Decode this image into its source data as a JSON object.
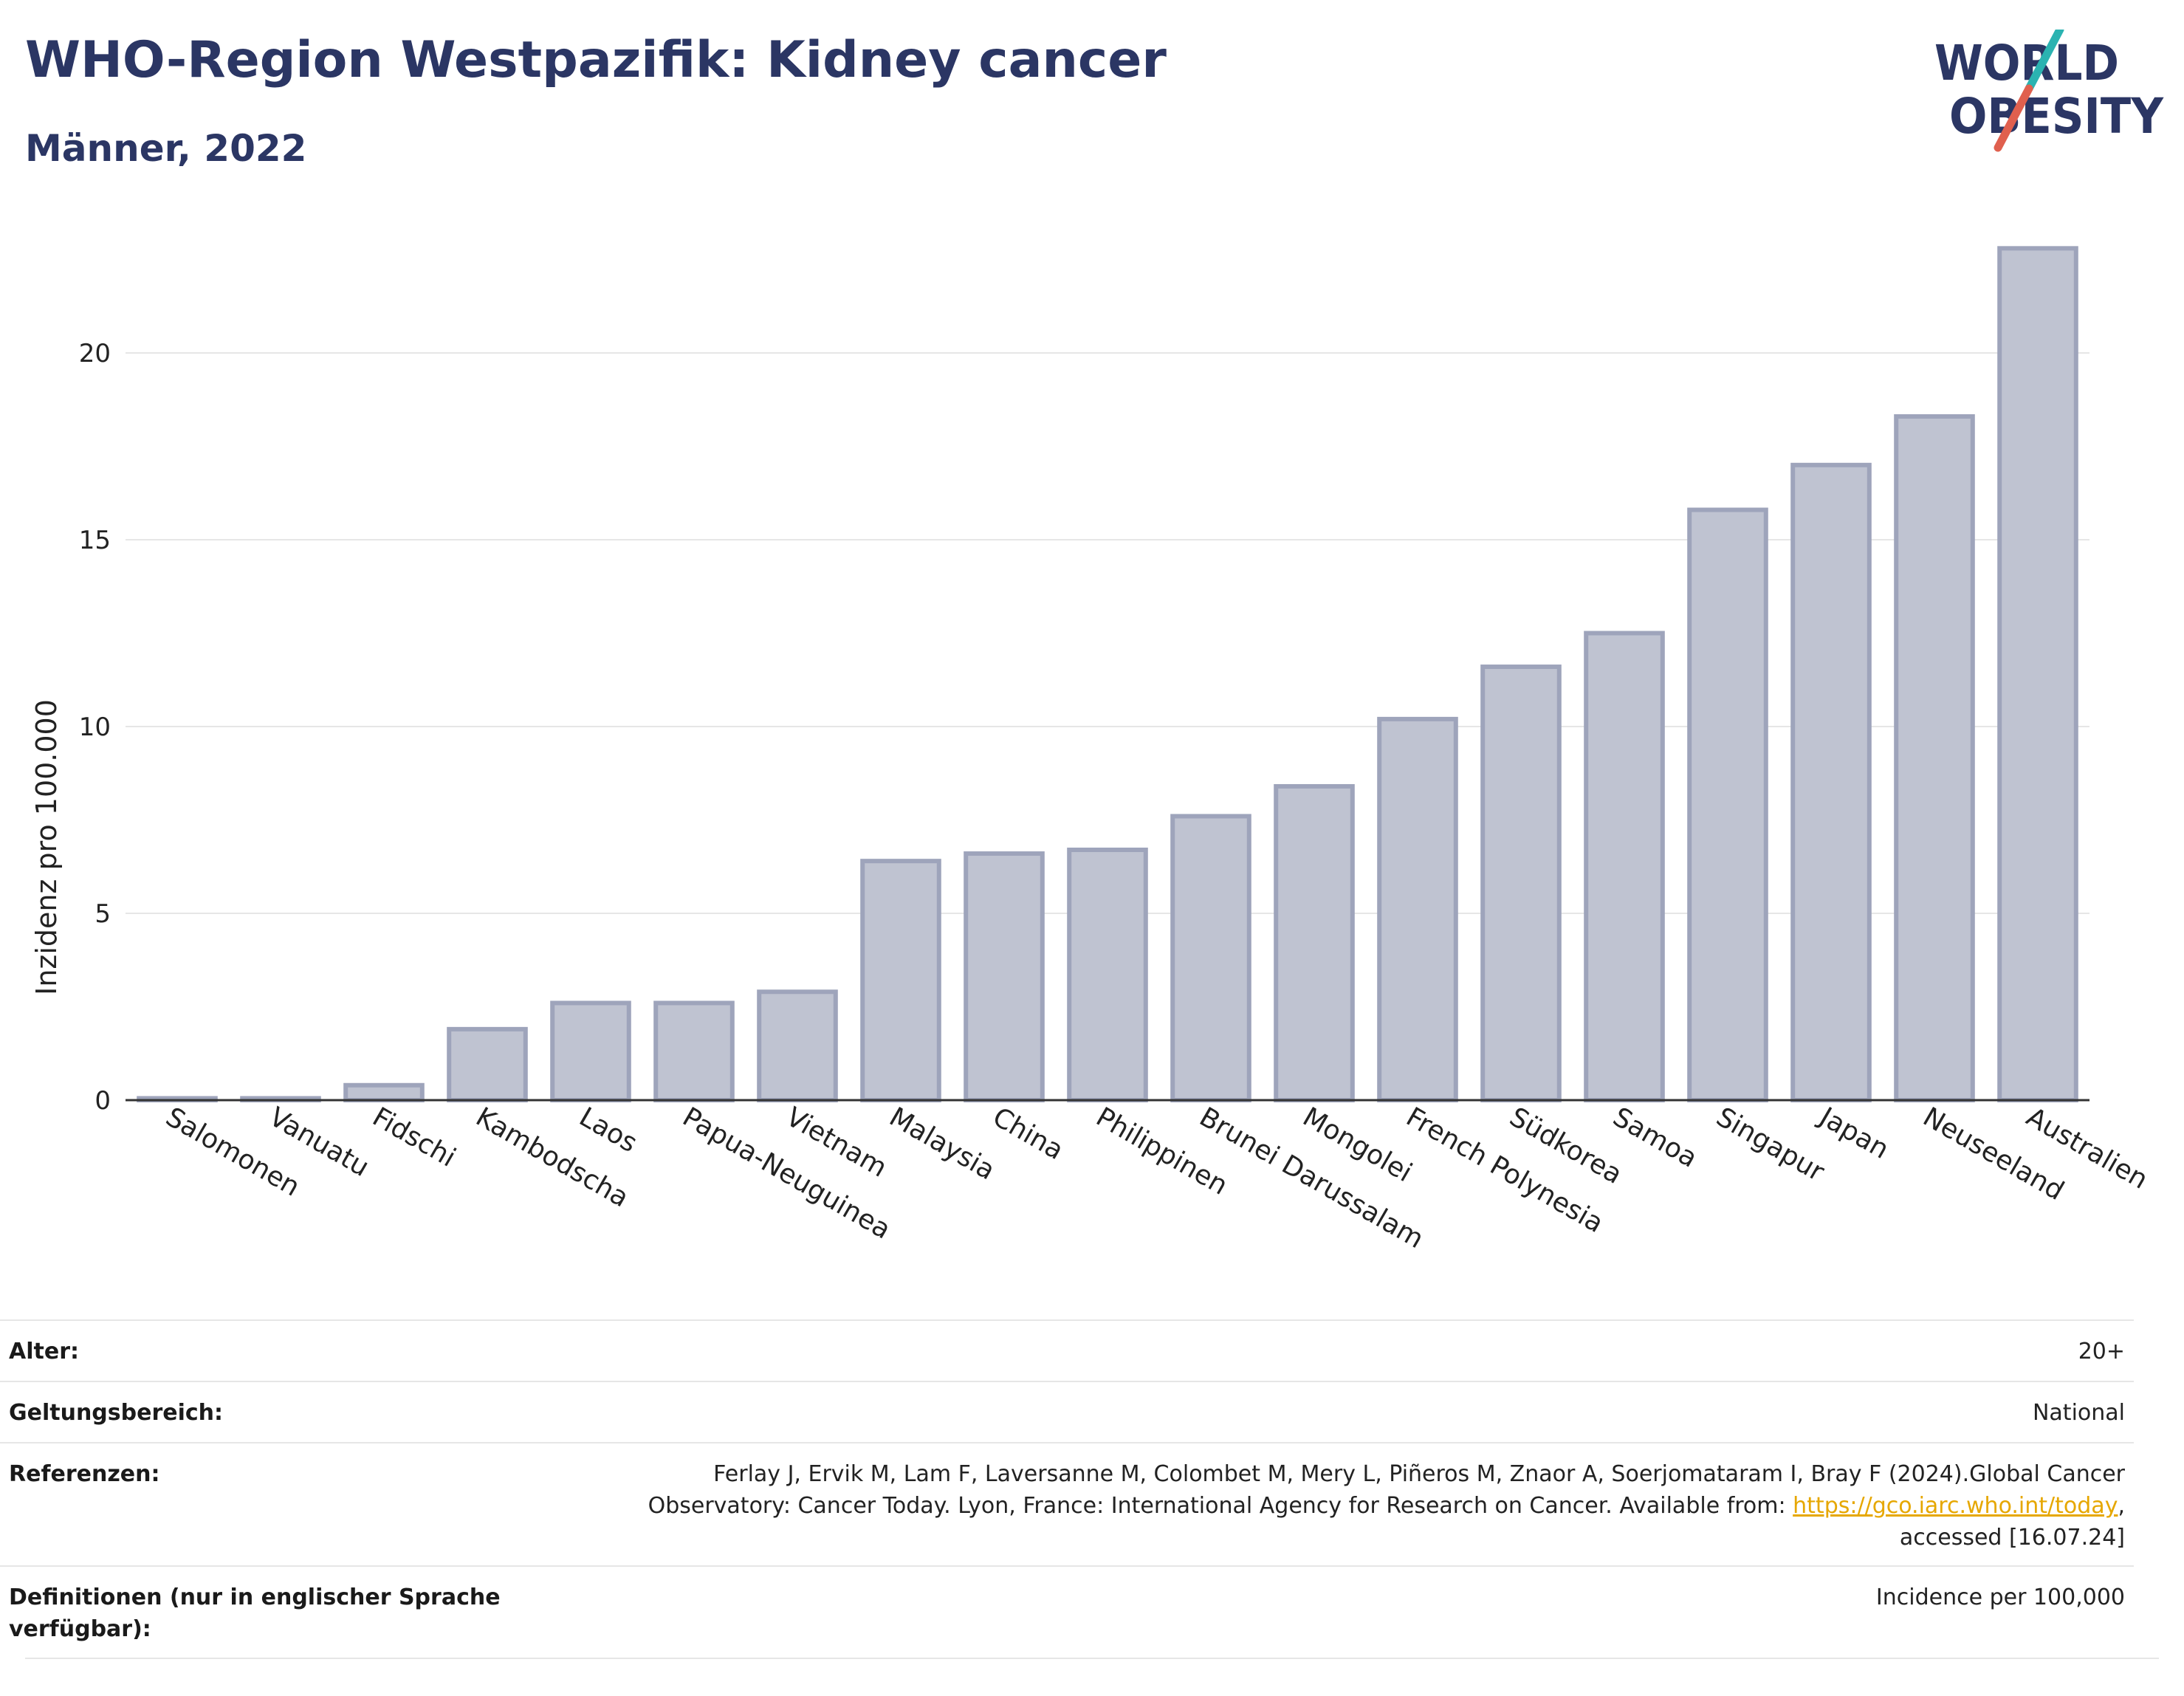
{
  "title": "WHO-Region Westpazifik: Kidney cancer",
  "subtitle": "Männer, 2022",
  "logo": {
    "line1": "WORLD",
    "line2": "OBESITY",
    "colors": {
      "text": "#2b3664",
      "teal": "#2bb3b1",
      "red": "#e0604e"
    }
  },
  "colors": {
    "bar_fill": "#bfc3d1",
    "bar_stroke": "#9ea4bb",
    "grid": "#e6e6e6",
    "axis": "#333333",
    "title": "#2b3664"
  },
  "chart_data": {
    "type": "bar",
    "ylabel": "Inzidenz pro 100.000",
    "xlabel": "",
    "ylim": [
      0,
      24
    ],
    "yticks": [
      0,
      5,
      10,
      15,
      20
    ],
    "grid": true,
    "categories": [
      "Salomonen",
      "Vanuatu",
      "Fidschi",
      "Kambodscha",
      "Laos",
      "Papua-Neuguinea",
      "Vietnam",
      "Malaysia",
      "China",
      "Philippinen",
      "Brunei Darussalam",
      "Mongolei",
      "French Polynesia",
      "Südkorea",
      "Samoa",
      "Singapur",
      "Japan",
      "Neuseeland",
      "Australien"
    ],
    "values": [
      0.05,
      0.05,
      0.4,
      1.9,
      2.6,
      2.6,
      2.9,
      6.4,
      6.6,
      6.7,
      7.6,
      8.4,
      10.2,
      11.6,
      12.5,
      15.8,
      17.0,
      18.3,
      22.8
    ]
  },
  "meta": {
    "age_label": "Alter:",
    "age_value": "20+",
    "scope_label": "Geltungsbereich:",
    "scope_value": "National",
    "ref_label": "Referenzen:",
    "ref_line1": "Ferlay J, Ervik M, Lam F, Laversanne M, Colombet M, Mery L, Piñeros M, Znaor A, Soerjomataram I, Bray F (2024).Global Cancer",
    "ref_line2_pre": "Observatory: Cancer Today. Lyon, France: International Agency for Research on Cancer. Available from: ",
    "ref_link": "https://gco.iarc.who.int/today",
    "ref_line2_post": ",",
    "ref_line3": "accessed [16.07.24]",
    "def_label_line1": "Definitionen (nur in englischer Sprache",
    "def_label_line2": "verfügbar):",
    "def_value": "Incidence per 100,000"
  }
}
